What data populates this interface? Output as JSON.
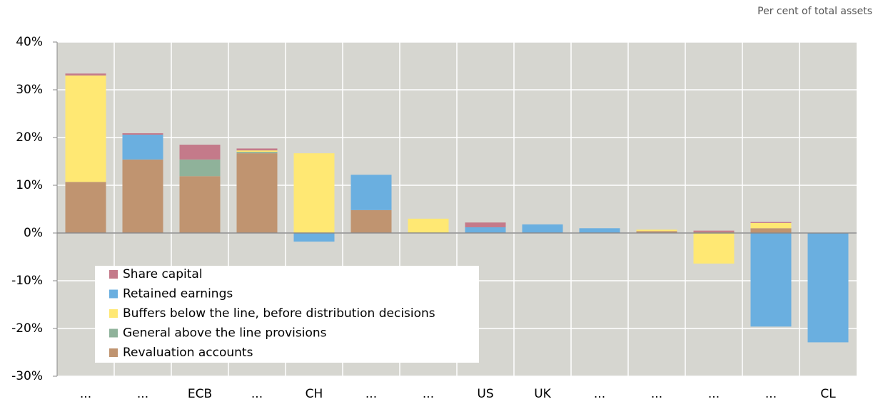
{
  "chart_data": {
    "type": "bar",
    "stacked": true,
    "unit_label": "Per cent of total assets",
    "categories": [
      "...",
      "...",
      "ECB",
      "...",
      "CH",
      "...",
      "...",
      "US",
      "UK",
      "...",
      "...",
      "...",
      "...",
      "CL"
    ],
    "series": [
      {
        "name": "Share capital",
        "color": "#c47a8a",
        "values": [
          0.4,
          0.3,
          3.1,
          0.4,
          0,
          0,
          0,
          1.0,
          0,
          0,
          0,
          0.3,
          0.2,
          0
        ]
      },
      {
        "name": "Retained earnings",
        "color": "#6aafe0",
        "values": [
          0,
          5.2,
          0,
          0,
          -1.8,
          7.4,
          0,
          1.2,
          1.8,
          1.0,
          0,
          0,
          -19.6,
          -22.9
        ]
      },
      {
        "name": "Buffers below the line, before distribution decisions",
        "color": "#ffe873",
        "values": [
          22.3,
          0,
          0,
          0.3,
          16.7,
          0,
          3.0,
          0,
          0,
          0,
          0.3,
          -6.4,
          1.1,
          0
        ]
      },
      {
        "name": "General above the line provisions",
        "color": "#8fb29a",
        "values": [
          0,
          0,
          3.5,
          0.3,
          0,
          0,
          0,
          0,
          0,
          0,
          0,
          0,
          0,
          0
        ]
      },
      {
        "name": "Revaluation accounts",
        "color": "#c09470",
        "values": [
          10.7,
          15.4,
          11.9,
          16.7,
          0,
          4.8,
          0,
          0,
          0,
          0,
          0.4,
          0.2,
          1.0,
          0
        ]
      }
    ],
    "ylim": [
      -30,
      40
    ],
    "yticks": [
      {
        "value": -30,
        "label": "-30%"
      },
      {
        "value": -20,
        "label": "-20%"
      },
      {
        "value": -10,
        "label": "-10%"
      },
      {
        "value": 0,
        "label": "0%"
      },
      {
        "value": 10,
        "label": "10%"
      },
      {
        "value": 20,
        "label": "20%"
      },
      {
        "value": 30,
        "label": "30%"
      },
      {
        "value": 40,
        "label": "40%"
      }
    ],
    "grid": true,
    "legend": "lower left"
  }
}
